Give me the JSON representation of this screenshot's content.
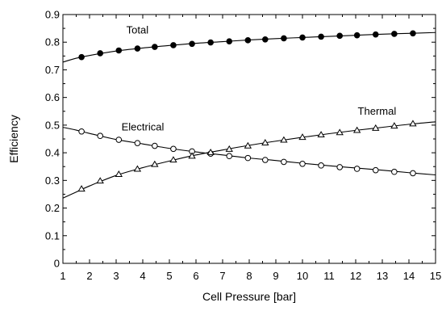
{
  "chart_data": {
    "type": "line",
    "title": "",
    "xlabel": "Cell Pressure  [bar]",
    "ylabel": "Efficiency",
    "xlim": [
      1,
      15
    ],
    "ylim": [
      0,
      0.9
    ],
    "x_ticks": [
      1,
      2,
      3,
      4,
      5,
      6,
      7,
      8,
      9,
      10,
      11,
      12,
      13,
      14,
      15
    ],
    "y_ticks": [
      0,
      0.1,
      0.2,
      0.3,
      0.4,
      0.5,
      0.6,
      0.7,
      0.8,
      0.9
    ],
    "y_tick_labels": [
      "0",
      "0.1",
      "0.2",
      "0.3",
      "0.4",
      "0.5",
      "0.6",
      "0.7",
      "0.8",
      "0.9"
    ],
    "x_tick_labels": [
      "1",
      "2",
      "3",
      "4",
      "5",
      "6",
      "7",
      "8",
      "9",
      "10",
      "11",
      "12",
      "13",
      "14",
      "15"
    ],
    "grid": false,
    "series": [
      {
        "name": "Total",
        "marker": "filled-circle",
        "curve": {
          "x": [
            1.0,
            1.5,
            2.0,
            3.0,
            4.0,
            5.0,
            6.0,
            7.0,
            8.0,
            9.0,
            10.0,
            11.0,
            12.0,
            13.0,
            14.0,
            15.0
          ],
          "y": [
            0.728,
            0.742,
            0.752,
            0.768,
            0.779,
            0.788,
            0.796,
            0.802,
            0.808,
            0.813,
            0.817,
            0.821,
            0.825,
            0.829,
            0.832,
            0.835
          ]
        },
        "points": {
          "x": [
            1.7,
            2.4,
            3.1,
            3.8,
            4.45,
            5.15,
            5.85,
            6.55,
            7.25,
            7.95,
            8.6,
            9.3,
            10.0,
            10.7,
            11.4,
            12.05,
            12.75,
            13.45,
            14.15
          ],
          "y": [
            0.746,
            0.76,
            0.77,
            0.777,
            0.783,
            0.789,
            0.794,
            0.799,
            0.803,
            0.807,
            0.81,
            0.814,
            0.817,
            0.82,
            0.823,
            0.825,
            0.828,
            0.83,
            0.832
          ]
        }
      },
      {
        "name": "Electrical",
        "marker": "open-circle",
        "curve": {
          "x": [
            1.0,
            1.5,
            2.0,
            3.0,
            4.0,
            5.0,
            6.0,
            7.0,
            8.0,
            9.0,
            10.0,
            11.0,
            12.0,
            13.0,
            14.0,
            15.0
          ],
          "y": [
            0.492,
            0.482,
            0.47,
            0.448,
            0.432,
            0.416,
            0.403,
            0.392,
            0.381,
            0.372,
            0.362,
            0.353,
            0.345,
            0.337,
            0.328,
            0.32
          ]
        },
        "points": {
          "x": [
            1.7,
            2.4,
            3.1,
            3.8,
            4.45,
            5.15,
            5.85,
            6.55,
            7.25,
            7.95,
            8.6,
            9.3,
            10.0,
            10.7,
            11.4,
            12.05,
            12.75,
            13.45,
            14.15
          ],
          "y": [
            0.477,
            0.461,
            0.447,
            0.435,
            0.425,
            0.414,
            0.405,
            0.397,
            0.388,
            0.381,
            0.374,
            0.367,
            0.36,
            0.354,
            0.348,
            0.342,
            0.337,
            0.331,
            0.326
          ]
        }
      },
      {
        "name": "Thermal",
        "marker": "open-triangle",
        "curve": {
          "x": [
            1.0,
            1.5,
            2.0,
            3.0,
            4.0,
            5.0,
            6.0,
            7.0,
            8.0,
            9.0,
            10.0,
            11.0,
            12.0,
            13.0,
            14.0,
            15.0
          ],
          "y": [
            0.236,
            0.258,
            0.28,
            0.318,
            0.346,
            0.37,
            0.392,
            0.41,
            0.427,
            0.442,
            0.456,
            0.469,
            0.481,
            0.492,
            0.503,
            0.512
          ]
        },
        "points": {
          "x": [
            1.7,
            2.4,
            3.1,
            3.8,
            4.45,
            5.15,
            5.85,
            6.55,
            7.25,
            7.95,
            8.6,
            9.3,
            10.0,
            10.7,
            11.4,
            12.05,
            12.75,
            13.45,
            14.15
          ],
          "y": [
            0.269,
            0.298,
            0.322,
            0.341,
            0.358,
            0.374,
            0.388,
            0.401,
            0.413,
            0.425,
            0.436,
            0.446,
            0.456,
            0.465,
            0.473,
            0.481,
            0.489,
            0.497,
            0.505
          ]
        }
      }
    ],
    "annotations": [
      {
        "text": "Total",
        "x": 3.8,
        "y": 0.832
      },
      {
        "text": "Electrical",
        "x": 4.0,
        "y": 0.48
      },
      {
        "text": "Thermal",
        "x": 12.8,
        "y": 0.537
      }
    ]
  }
}
